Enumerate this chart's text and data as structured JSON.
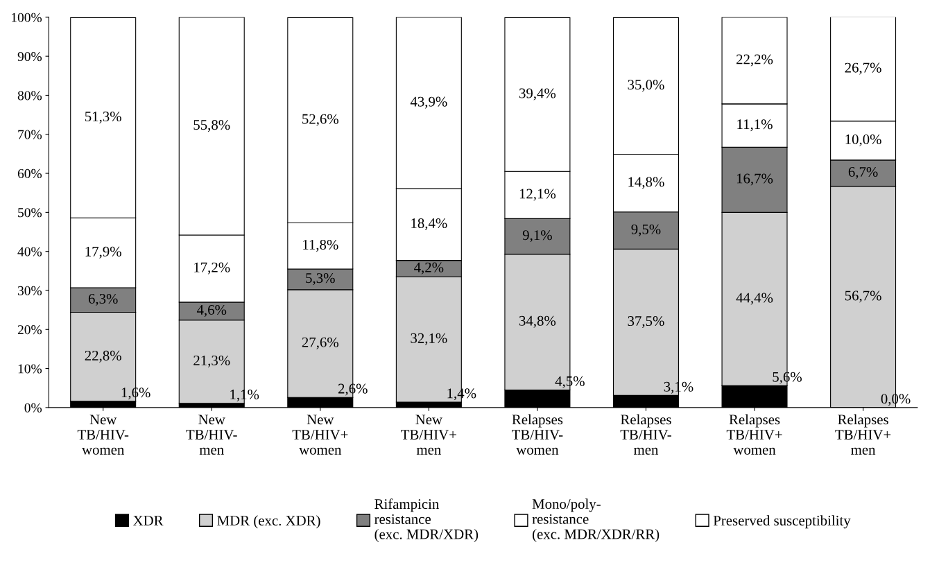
{
  "chart_data": {
    "type": "bar",
    "stacked": true,
    "legend": "bottom",
    "grid": false,
    "categories": [
      "New\nTB/HIV-\nwomen",
      "New\nTB/HIV-\nmen",
      "New\nTB/HIV+\nwomen",
      "New\nTB/HIV+\nmen",
      "Relapses\nTB/HIV-\nwomen",
      "Relapses\nTB/HIV-\nmen",
      "Relapses\nTB/HIV+\nwomen",
      "Relapses\nTB/HIV+\nmen"
    ],
    "ylim": [
      0,
      100
    ],
    "yticks": [
      {
        "value": 0,
        "label": "0%"
      },
      {
        "value": 10,
        "label": "10%"
      },
      {
        "value": 20,
        "label": "20%"
      },
      {
        "value": 30,
        "label": "30%"
      },
      {
        "value": 40,
        "label": "40%"
      },
      {
        "value": 50,
        "label": "50%"
      },
      {
        "value": 60,
        "label": "60%"
      },
      {
        "value": 70,
        "label": "70%"
      },
      {
        "value": 80,
        "label": "80%"
      },
      {
        "value": 90,
        "label": "90%"
      },
      {
        "value": 100,
        "label": "100%"
      }
    ],
    "series": [
      {
        "name": "XDR",
        "color": "#000000",
        "values": [
          1.6,
          1.1,
          2.6,
          1.4,
          4.5,
          3.1,
          5.6,
          0.0
        ],
        "value_labels": [
          "1,6%",
          "1,1%",
          "2,6%",
          "1,4%",
          "4,5%",
          "3,1%",
          "5,6%",
          "0,0%"
        ]
      },
      {
        "name": "MDR (exc. XDR)",
        "color": "#d0d0d0",
        "values": [
          22.8,
          21.3,
          27.6,
          32.1,
          34.8,
          37.5,
          44.4,
          56.7
        ],
        "value_labels": [
          "22,8%",
          "21,3%",
          "27,6%",
          "32,1%",
          "34,8%",
          "37,5%",
          "44,4%",
          "56,7%"
        ]
      },
      {
        "name": "Rifampicin\nresistance\n(exc. MDR/XDR)",
        "color": "#808080",
        "values": [
          6.3,
          4.6,
          5.3,
          4.2,
          9.1,
          9.5,
          16.7,
          6.7
        ],
        "value_labels": [
          "6,3%",
          "4,6%",
          "5,3%",
          "4,2%",
          "9,1%",
          "9,5%",
          "16,7%",
          "6,7%"
        ]
      },
      {
        "name": "Mono/poly-\nresistance\n(exc. MDR/XDR/RR)",
        "color": "#ffffff",
        "values": [
          17.9,
          17.2,
          11.8,
          18.4,
          12.1,
          14.8,
          11.1,
          10.0
        ],
        "value_labels": [
          "17,9%",
          "17,2%",
          "11,8%",
          "18,4%",
          "12,1%",
          "14,8%",
          "11,1%",
          "10,0%"
        ]
      },
      {
        "name": "Preserved susceptibility",
        "color": "#ffffff",
        "values": [
          51.3,
          55.8,
          52.6,
          43.9,
          39.4,
          35.0,
          22.2,
          26.7
        ],
        "value_labels": [
          "51,3%",
          "55,8%",
          "52,6%",
          "43,9%",
          "39,4%",
          "35,0%",
          "22,2%",
          "26,7%"
        ]
      }
    ]
  }
}
